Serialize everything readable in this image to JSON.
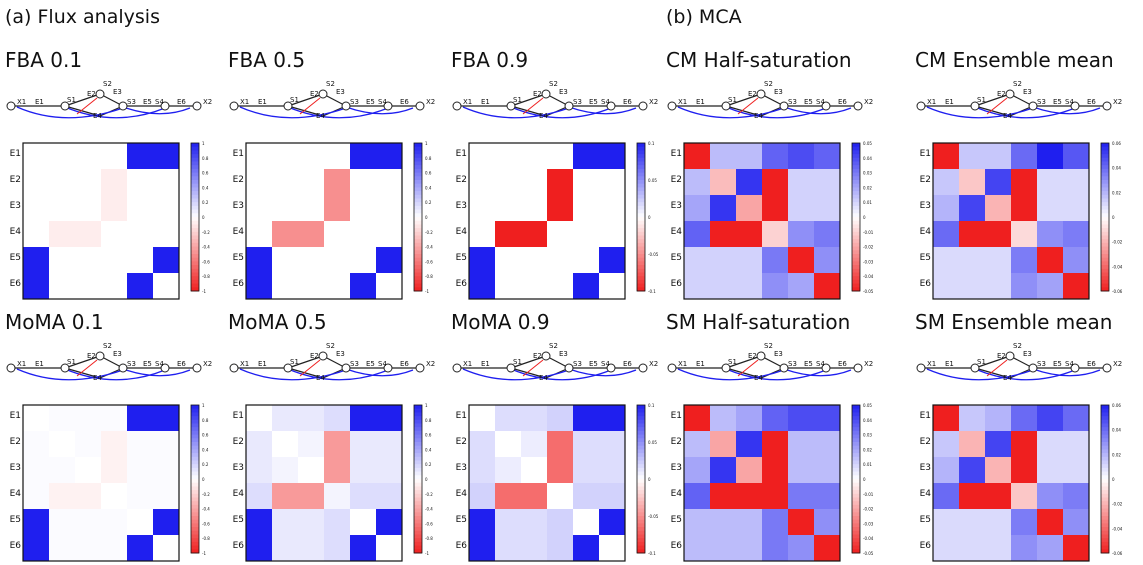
{
  "figure": {
    "section_a_title": "(a) Flux analysis",
    "section_b_title": "(b) MCA"
  },
  "network": {
    "node_labels": [
      "X1",
      "E1",
      "S1",
      "E2",
      "S2",
      "E3",
      "S3",
      "E5",
      "S4",
      "E6",
      "X2",
      "E4"
    ]
  },
  "row_labels": [
    "E1",
    "E2",
    "E3",
    "E4",
    "E5",
    "E6"
  ],
  "colors": {
    "positive": "#1f1fef",
    "negative": "#ef1f1f",
    "neutral": "#ffffff",
    "network_line": "#1a1a1a"
  },
  "chart_data": [
    {
      "type": "heatmap",
      "title": "FBA 0.1",
      "rows": [
        "E1",
        "E2",
        "E3",
        "E4",
        "E5",
        "E6"
      ],
      "colorbar_ticks": [
        "1",
        "0.8",
        "0.6",
        "0.4",
        "0.2",
        "0",
        "-0.2",
        "-0.4",
        "-0.6",
        "-0.8",
        "-1"
      ],
      "clim": [
        -1,
        1
      ],
      "values": [
        [
          0,
          0,
          0,
          0,
          1,
          1
        ],
        [
          0,
          0,
          0,
          -0.08,
          0,
          0
        ],
        [
          0,
          0,
          0,
          -0.08,
          0,
          0
        ],
        [
          0,
          -0.08,
          -0.08,
          0,
          0,
          0
        ],
        [
          1,
          0,
          0,
          0,
          0,
          1
        ],
        [
          1,
          0,
          0,
          0,
          1,
          0
        ]
      ]
    },
    {
      "type": "heatmap",
      "title": "FBA 0.5",
      "rows": [
        "E1",
        "E2",
        "E3",
        "E4",
        "E5",
        "E6"
      ],
      "colorbar_ticks": [
        "1",
        "0.8",
        "0.6",
        "0.4",
        "0.2",
        "0",
        "-0.2",
        "-0.4",
        "-0.6",
        "-0.8",
        "-1"
      ],
      "clim": [
        -1,
        1
      ],
      "values": [
        [
          0,
          0,
          0,
          0,
          1,
          1
        ],
        [
          0,
          0,
          0,
          -0.5,
          0,
          0
        ],
        [
          0,
          0,
          0,
          -0.5,
          0,
          0
        ],
        [
          0,
          -0.5,
          -0.5,
          0,
          0,
          0
        ],
        [
          1,
          0,
          0,
          0,
          0,
          1
        ],
        [
          1,
          0,
          0,
          0,
          1,
          0
        ]
      ]
    },
    {
      "type": "heatmap",
      "title": "FBA 0.9",
      "rows": [
        "E1",
        "E2",
        "E3",
        "E4",
        "E5",
        "E6"
      ],
      "colorbar_ticks": [
        "0.1",
        "0.05",
        "0",
        "-0.05",
        "-0.1"
      ],
      "clim": [
        -0.1,
        0.1
      ],
      "values": [
        [
          0,
          0,
          0,
          0,
          0.1,
          0.1
        ],
        [
          0,
          0,
          0,
          -0.1,
          0,
          0
        ],
        [
          0,
          0,
          0,
          -0.1,
          0,
          0
        ],
        [
          0,
          -0.1,
          -0.1,
          0,
          0,
          0
        ],
        [
          0.1,
          0,
          0,
          0,
          0,
          0.1
        ],
        [
          0.1,
          0,
          0,
          0,
          0.1,
          0
        ]
      ]
    },
    {
      "type": "heatmap",
      "title": "CM Half-saturation",
      "rows": [
        "E1",
        "E2",
        "E3",
        "E4",
        "E5",
        "E6"
      ],
      "colorbar_ticks": [
        "0.05",
        "0.04",
        "0.03",
        "0.02",
        "0.01",
        "0",
        "-0.01",
        "-0.02",
        "-0.03",
        "-0.04",
        "-0.05"
      ],
      "clim": [
        -0.05,
        0.05
      ],
      "values": [
        [
          -0.05,
          0.015,
          0.015,
          0.035,
          0.04,
          0.035
        ],
        [
          0.015,
          -0.015,
          0.045,
          -0.05,
          0.01,
          0.01
        ],
        [
          0.02,
          0.045,
          -0.02,
          -0.05,
          0.01,
          0.01
        ],
        [
          0.035,
          -0.05,
          -0.05,
          -0.01,
          0.025,
          0.03
        ],
        [
          0.01,
          0.01,
          0.01,
          0.03,
          -0.05,
          0.025
        ],
        [
          0.01,
          0.01,
          0.01,
          0.025,
          0.02,
          -0.05
        ]
      ]
    },
    {
      "type": "heatmap",
      "title": "CM Ensemble mean",
      "rows": [
        "E1",
        "E2",
        "E3",
        "E4",
        "E5",
        "E6"
      ],
      "colorbar_ticks": [
        "0.06",
        "0.04",
        "0.02",
        "0",
        "-0.02",
        "-0.04",
        "-0.06"
      ],
      "clim": [
        -0.06,
        0.06
      ],
      "values": [
        [
          -0.06,
          0.015,
          0.015,
          0.04,
          0.06,
          0.045
        ],
        [
          0.015,
          -0.015,
          0.05,
          -0.06,
          0.01,
          0.01
        ],
        [
          0.02,
          0.05,
          -0.02,
          -0.06,
          0.01,
          0.01
        ],
        [
          0.04,
          -0.06,
          -0.06,
          -0.01,
          0.03,
          0.035
        ],
        [
          0.01,
          0.01,
          0.01,
          0.035,
          -0.06,
          0.03
        ],
        [
          0.01,
          0.01,
          0.01,
          0.03,
          0.025,
          -0.06
        ]
      ]
    },
    {
      "type": "heatmap",
      "title": "MoMA 0.1",
      "rows": [
        "E1",
        "E2",
        "E3",
        "E4",
        "E5",
        "E6"
      ],
      "colorbar_ticks": [
        "1",
        "0.8",
        "0.6",
        "0.4",
        "0.2",
        "0",
        "-0.2",
        "-0.4",
        "-0.6",
        "-0.8",
        "-1"
      ],
      "clim": [
        -1,
        1
      ],
      "values": [
        [
          0,
          0.02,
          0.02,
          0.02,
          1,
          1
        ],
        [
          0.02,
          0,
          0.02,
          -0.06,
          0.02,
          0.02
        ],
        [
          0.02,
          0.02,
          0,
          -0.06,
          0.02,
          0.02
        ],
        [
          0.02,
          -0.06,
          -0.06,
          0,
          0.02,
          0.02
        ],
        [
          1,
          0.02,
          0.02,
          0.02,
          0,
          1
        ],
        [
          1,
          0.02,
          0.02,
          0.02,
          1,
          0
        ]
      ]
    },
    {
      "type": "heatmap",
      "title": "MoMA 0.5",
      "rows": [
        "E1",
        "E2",
        "E3",
        "E4",
        "E5",
        "E6"
      ],
      "colorbar_ticks": [
        "1",
        "0.8",
        "0.6",
        "0.4",
        "0.2",
        "0",
        "-0.2",
        "-0.4",
        "-0.6",
        "-0.8",
        "-1"
      ],
      "clim": [
        -1,
        1
      ],
      "values": [
        [
          0,
          0.1,
          0.1,
          0.15,
          1,
          1
        ],
        [
          0.1,
          0,
          0.05,
          -0.45,
          0.1,
          0.1
        ],
        [
          0.1,
          0.05,
          0,
          -0.45,
          0.1,
          0.1
        ],
        [
          0.15,
          -0.45,
          -0.45,
          0.05,
          0.15,
          0.15
        ],
        [
          1,
          0.1,
          0.1,
          0.15,
          0,
          1
        ],
        [
          1,
          0.1,
          0.1,
          0.15,
          1,
          0
        ]
      ]
    },
    {
      "type": "heatmap",
      "title": "MoMA 0.9",
      "rows": [
        "E1",
        "E2",
        "E3",
        "E4",
        "E5",
        "E6"
      ],
      "colorbar_ticks": [
        "0.1",
        "0.05",
        "0",
        "-0.05",
        "-0.1"
      ],
      "clim": [
        -0.1,
        0.1
      ],
      "values": [
        [
          0,
          0.015,
          0.015,
          0.02,
          0.1,
          0.1
        ],
        [
          0.015,
          0,
          0.008,
          -0.065,
          0.015,
          0.015
        ],
        [
          0.015,
          0.008,
          0,
          -0.065,
          0.015,
          0.015
        ],
        [
          0.02,
          -0.065,
          -0.065,
          0,
          0.02,
          0.02
        ],
        [
          0.1,
          0.015,
          0.015,
          0.02,
          0,
          0.1
        ],
        [
          0.1,
          0.015,
          0.015,
          0.02,
          0.1,
          0
        ]
      ]
    },
    {
      "type": "heatmap",
      "title": "SM Half-saturation",
      "rows": [
        "E1",
        "E2",
        "E3",
        "E4",
        "E5",
        "E6"
      ],
      "colorbar_ticks": [
        "0.05",
        "0.04",
        "0.03",
        "0.02",
        "0.01",
        "0",
        "-0.01",
        "-0.02",
        "-0.03",
        "-0.04",
        "-0.05"
      ],
      "clim": [
        -0.05,
        0.05
      ],
      "values": [
        [
          -0.05,
          0.015,
          0.02,
          0.035,
          0.04,
          0.04
        ],
        [
          0.015,
          -0.02,
          0.045,
          -0.05,
          0.015,
          0.015
        ],
        [
          0.02,
          0.045,
          -0.02,
          -0.05,
          0.015,
          0.015
        ],
        [
          0.035,
          -0.05,
          -0.05,
          -0.05,
          0.03,
          0.03
        ],
        [
          0.015,
          0.015,
          0.015,
          0.03,
          -0.05,
          0.025
        ],
        [
          0.015,
          0.015,
          0.015,
          0.03,
          0.025,
          -0.05
        ]
      ]
    },
    {
      "type": "heatmap",
      "title": "SM Ensemble mean",
      "rows": [
        "E1",
        "E2",
        "E3",
        "E4",
        "E5",
        "E6"
      ],
      "colorbar_ticks": [
        "0.06",
        "0.04",
        "0.02",
        "0",
        "-0.02",
        "-0.04",
        "-0.06"
      ],
      "clim": [
        -0.06,
        0.06
      ],
      "values": [
        [
          -0.06,
          0.015,
          0.02,
          0.04,
          0.05,
          0.04
        ],
        [
          0.015,
          -0.02,
          0.05,
          -0.06,
          0.01,
          0.01
        ],
        [
          0.02,
          0.05,
          -0.02,
          -0.06,
          0.01,
          0.01
        ],
        [
          0.04,
          -0.06,
          -0.06,
          -0.015,
          0.03,
          0.035
        ],
        [
          0.01,
          0.01,
          0.01,
          0.035,
          -0.06,
          0.03
        ],
        [
          0.01,
          0.01,
          0.01,
          0.03,
          0.025,
          -0.06
        ]
      ]
    }
  ]
}
